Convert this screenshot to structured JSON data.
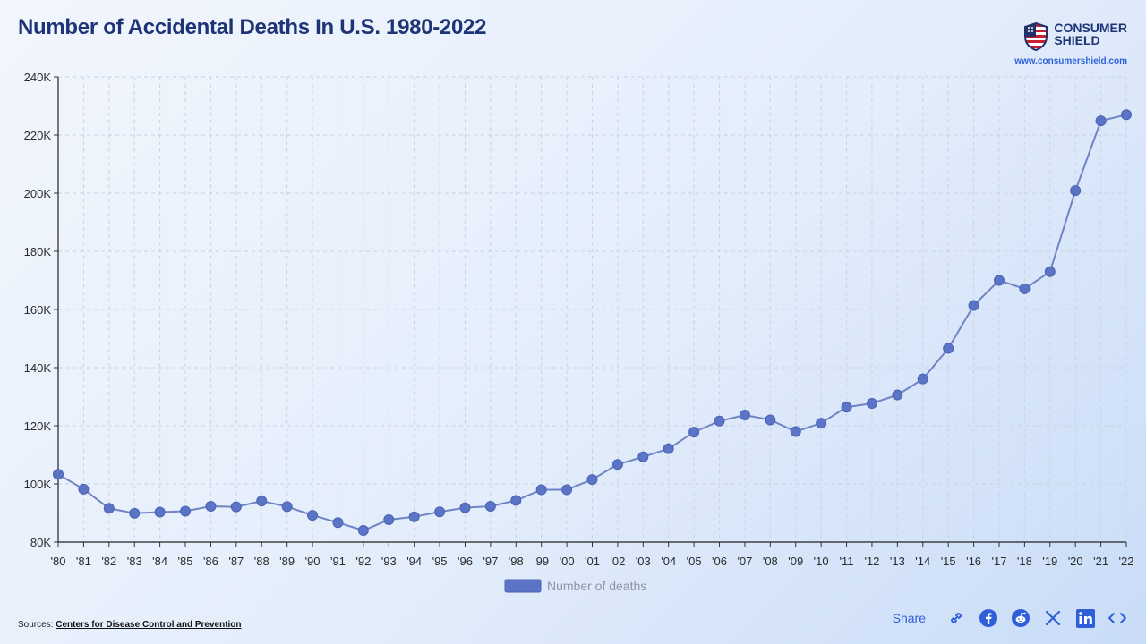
{
  "title": "Number of Accidental Deaths In U.S. 1980-2022",
  "brand": {
    "line1": "CONSUMER",
    "line2": "SHIELD",
    "url": "www.consumershield.com"
  },
  "sources": {
    "label": "Sources:",
    "link_text": "Centers for Disease Control and Prevention"
  },
  "share": {
    "label": "Share",
    "icons": [
      "link-icon",
      "facebook-icon",
      "reddit-icon",
      "x-icon",
      "linkedin-icon",
      "embed-icon"
    ]
  },
  "colors": {
    "title": "#1e3477",
    "series": "#5b74c6",
    "line": "#6f84c5",
    "accent": "#2f5fd8"
  },
  "chart_data": {
    "type": "line",
    "title": "Number of Accidental Deaths In U.S. 1980-2022",
    "categories": [
      "'80",
      "'81",
      "'82",
      "'83",
      "'84",
      "'85",
      "'86",
      "'87",
      "'88",
      "'89",
      "'90",
      "'91",
      "'92",
      "'93",
      "'94",
      "'95",
      "'96",
      "'97",
      "'98",
      "'99",
      "'00",
      "'01",
      "'02",
      "'03",
      "'04",
      "'05",
      "'06",
      "'07",
      "'08",
      "'09",
      "'10",
      "'11",
      "'12",
      "'13",
      "'14",
      "'15",
      "'16",
      "'17",
      "'18",
      "'19",
      "'20",
      "'21",
      "'22"
    ],
    "series": [
      {
        "name": "Number of deaths",
        "values": [
          103300,
          98200,
          91600,
          89900,
          90300,
          90600,
          92300,
          92100,
          94100,
          92200,
          89200,
          86700,
          84000,
          87700,
          88700,
          90400,
          91800,
          92300,
          94300,
          98000,
          98000,
          101500,
          106700,
          109300,
          112100,
          117800,
          121600,
          123700,
          122000,
          118000,
          120900,
          126400,
          127700,
          130600,
          136100,
          146600,
          161400,
          170000,
          167100,
          173000,
          200900,
          224900,
          227000
        ]
      }
    ],
    "yticks": [
      {
        "value": 80000,
        "label": "80K"
      },
      {
        "value": 100000,
        "label": "100K"
      },
      {
        "value": 120000,
        "label": "120K"
      },
      {
        "value": 140000,
        "label": "140K"
      },
      {
        "value": 160000,
        "label": "160K"
      },
      {
        "value": 180000,
        "label": "180K"
      },
      {
        "value": 200000,
        "label": "200K"
      },
      {
        "value": 220000,
        "label": "220K"
      },
      {
        "value": 240000,
        "label": "240K"
      }
    ],
    "ylim": [
      80000,
      240000
    ],
    "grid": true,
    "legend_position": "bottom-center"
  }
}
